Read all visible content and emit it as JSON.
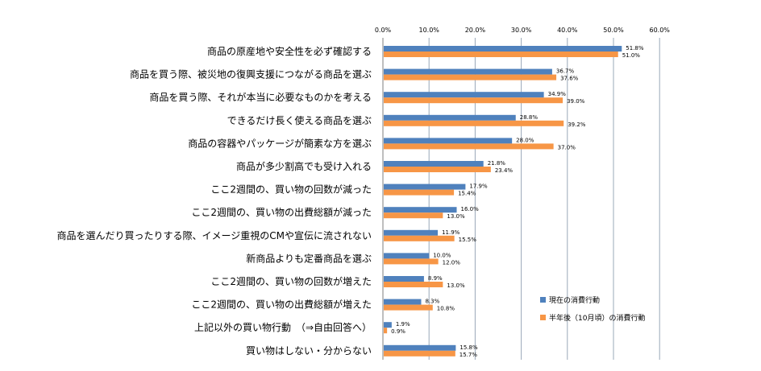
{
  "colors": {
    "current": "#4f81bd",
    "future": "#f79646",
    "grid": "#9aa8b8"
  },
  "chart_data": {
    "type": "bar",
    "orientation": "horizontal",
    "xlim": [
      0,
      60
    ],
    "xticks": [
      "0.0%",
      "10.0%",
      "20.0%",
      "30.0%",
      "40.0%",
      "50.0%",
      "60.0%"
    ],
    "tick_values": [
      0,
      10,
      20,
      30,
      40,
      50,
      60
    ],
    "grid": true,
    "legend_position": "bottom-right",
    "categories": [
      "商品の原産地や安全性を必ず確認する",
      "商品を買う際、被災地の復興支援につながる商品を選ぶ",
      "商品を買う際、それが本当に必要なものかを考える",
      "できるだけ長く使える商品を選ぶ",
      "商品の容器やパッケージが簡素な方を選ぶ",
      "商品が多少割高でも受け入れる",
      "ここ2週間の、買い物の回数が減った",
      "ここ2週間の、買い物の出費総額が減った",
      "商品を選んだり買ったりする際、イメージ重視のCMや宣伝に流されない",
      "新商品よりも定番商品を選ぶ",
      "ここ2週間の、買い物の回数が増えた",
      "ここ2週間の、買い物の出費総額が増えた",
      "上記以外の買い物行動　（⇒自由回答へ）",
      "買い物はしない・分からない"
    ],
    "series": [
      {
        "name": "現在の消費行動",
        "values": [
          51.8,
          36.7,
          34.9,
          28.8,
          28.0,
          21.8,
          17.9,
          16.0,
          11.9,
          10.0,
          8.9,
          8.3,
          1.9,
          15.8
        ],
        "labels": [
          "51.8%",
          "36.7%",
          "34.9%",
          "28.8%",
          "28.0%",
          "21.8%",
          "17.9%",
          "16.0%",
          "11.9%",
          "10.0%",
          "8.9%",
          "8.3%",
          "1.9%",
          "15.8%"
        ]
      },
      {
        "name": "半年後（10月頃）の消費行動",
        "values": [
          51.0,
          37.6,
          39.0,
          39.2,
          37.0,
          23.4,
          15.4,
          13.0,
          15.5,
          12.0,
          13.0,
          10.8,
          0.9,
          15.7
        ],
        "labels": [
          "51.0%",
          "37.6%",
          "39.0%",
          "39.2%",
          "37.0%",
          "23.4%",
          "15.4%",
          "13.0%",
          "15.5%",
          "12.0%",
          "13.0%",
          "10.8%",
          "0.9%",
          "15.7%"
        ]
      }
    ]
  }
}
